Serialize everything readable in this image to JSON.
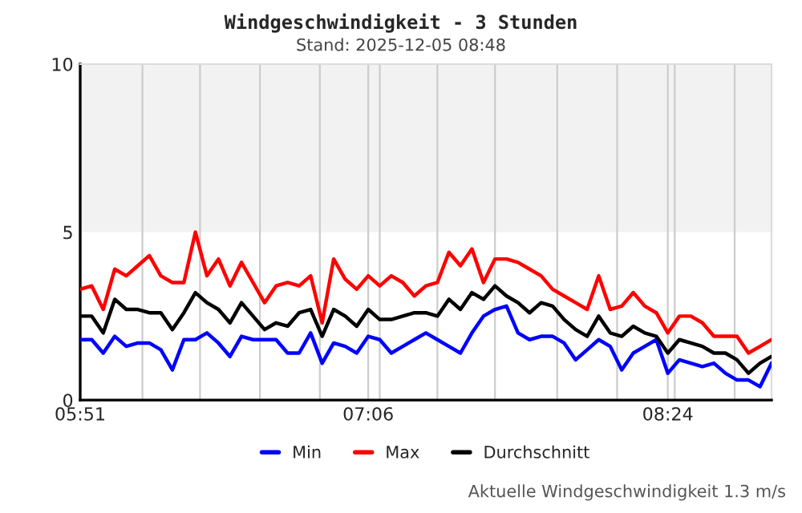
{
  "chart_data": {
    "type": "line",
    "title": "Windgeschwindigkeit - 3 Stunden",
    "subtitle": "Stand: 2025-12-05 08:48",
    "annotations": [
      "Aktuelle Windgeschwindigkeit 1.3 m/s"
    ],
    "x": [
      5.85,
      5.9,
      5.95,
      6.0,
      6.05,
      6.1,
      6.15,
      6.2,
      6.25,
      6.3,
      6.35,
      6.4,
      6.45,
      6.5,
      6.55,
      6.6,
      6.65,
      6.7,
      6.75,
      6.8,
      6.85,
      6.9,
      6.95,
      7.0,
      7.05,
      7.1,
      7.15,
      7.2,
      7.25,
      7.3,
      7.35,
      7.4,
      7.45,
      7.5,
      7.55,
      7.6,
      7.65,
      7.7,
      7.75,
      7.8,
      7.85,
      7.9,
      7.95,
      8.0,
      8.05,
      8.1,
      8.15,
      8.2,
      8.25,
      8.3,
      8.35,
      8.4,
      8.45,
      8.5,
      8.55,
      8.6,
      8.65,
      8.7,
      8.75,
      8.8,
      8.85
    ],
    "series": [
      {
        "name": "Min",
        "color": "#0000ff",
        "values": [
          1.8,
          1.8,
          1.4,
          1.9,
          1.6,
          1.7,
          1.7,
          1.5,
          0.9,
          1.8,
          1.8,
          2.0,
          1.7,
          1.3,
          1.9,
          1.8,
          1.8,
          1.8,
          1.4,
          1.4,
          2.0,
          1.1,
          1.7,
          1.6,
          1.4,
          1.9,
          1.8,
          1.4,
          1.6,
          1.8,
          2.0,
          1.8,
          1.6,
          1.4,
          2.0,
          2.5,
          2.7,
          2.8,
          2.0,
          1.8,
          1.9,
          1.9,
          1.7,
          1.2,
          1.5,
          1.8,
          1.6,
          0.9,
          1.4,
          1.6,
          1.8,
          0.8,
          1.2,
          1.1,
          1.0,
          1.1,
          0.8,
          0.6,
          0.6,
          0.4,
          1.1
        ]
      },
      {
        "name": "Max",
        "color": "#ff0000",
        "values": [
          3.3,
          3.4,
          2.7,
          3.9,
          3.7,
          4.0,
          4.3,
          3.7,
          3.5,
          3.5,
          5.0,
          3.7,
          4.2,
          3.4,
          4.1,
          3.5,
          2.9,
          3.4,
          3.5,
          3.4,
          3.7,
          2.3,
          4.2,
          3.6,
          3.3,
          3.7,
          3.4,
          3.7,
          3.5,
          3.1,
          3.4,
          3.5,
          4.4,
          4.0,
          4.5,
          3.5,
          4.2,
          4.2,
          4.1,
          3.9,
          3.7,
          3.3,
          3.1,
          2.9,
          2.7,
          3.7,
          2.7,
          2.8,
          3.2,
          2.8,
          2.6,
          2.0,
          2.5,
          2.5,
          2.3,
          1.9,
          1.9,
          1.9,
          1.4,
          1.6,
          1.8
        ]
      },
      {
        "name": "Durchschnitt",
        "color": "#000000",
        "values": [
          2.5,
          2.5,
          2.0,
          3.0,
          2.7,
          2.7,
          2.6,
          2.6,
          2.1,
          2.6,
          3.2,
          2.9,
          2.7,
          2.3,
          2.9,
          2.5,
          2.1,
          2.3,
          2.2,
          2.6,
          2.7,
          1.9,
          2.7,
          2.5,
          2.2,
          2.7,
          2.4,
          2.4,
          2.5,
          2.6,
          2.6,
          2.5,
          3.0,
          2.7,
          3.2,
          3.0,
          3.4,
          3.1,
          2.9,
          2.6,
          2.9,
          2.8,
          2.4,
          2.1,
          1.9,
          2.5,
          2.0,
          1.9,
          2.2,
          2.0,
          1.9,
          1.4,
          1.8,
          1.7,
          1.6,
          1.4,
          1.4,
          1.2,
          0.8,
          1.1,
          1.3
        ]
      }
    ],
    "xlim": [
      5.85,
      8.85
    ],
    "ylim": [
      0,
      10
    ],
    "yticks": [
      0,
      5,
      10
    ],
    "xticks": [
      {
        "value": 5.85,
        "label": "05:51"
      },
      {
        "value": 6.12,
        "label": null
      },
      {
        "value": 6.37,
        "label": null
      },
      {
        "value": 6.63,
        "label": null
      },
      {
        "value": 6.89,
        "label": null
      },
      {
        "value": 7.1,
        "label": "07:06"
      },
      {
        "value": 7.15,
        "label": null
      },
      {
        "value": 7.4,
        "label": null
      },
      {
        "value": 7.65,
        "label": null
      },
      {
        "value": 7.92,
        "label": null
      },
      {
        "value": 8.18,
        "label": null
      },
      {
        "value": 8.4,
        "label": "08:24"
      },
      {
        "value": 8.43,
        "label": null
      },
      {
        "value": 8.69,
        "label": null
      }
    ],
    "bands": [
      {
        "axis": "y",
        "from": 5,
        "to": 10,
        "color": "#f2f2f2"
      }
    ],
    "grid": "x",
    "legend": "bottom",
    "line_style": "solid",
    "marker": "none"
  }
}
